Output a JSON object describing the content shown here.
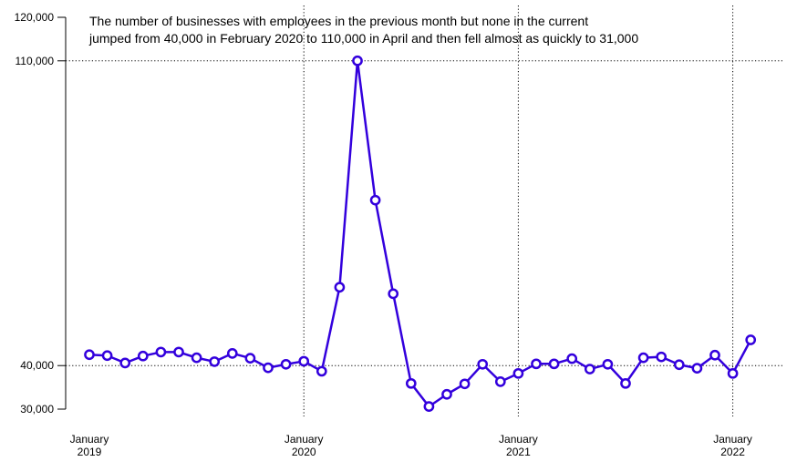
{
  "chart_data": {
    "type": "line",
    "annotation": [
      "The number of businesses with employees in the previous month but none in the current",
      "jumped from 40,000 in February 2020 to 110,000 in April and then fell almost as quickly to 31,000"
    ],
    "x_tick_labels": [
      {
        "month": "2019-01",
        "line1": "January",
        "line2": "2019"
      },
      {
        "month": "2020-01",
        "line1": "January",
        "line2": "2020"
      },
      {
        "month": "2021-01",
        "line1": "January",
        "line2": "2021"
      },
      {
        "month": "2022-01",
        "line1": "January",
        "line2": "2022"
      }
    ],
    "y_ticks": [
      {
        "value": 30000,
        "label": "30,000"
      },
      {
        "value": 40000,
        "label": "40,000"
      },
      {
        "value": 110000,
        "label": "110,000"
      },
      {
        "value": 120000,
        "label": "120,000"
      }
    ],
    "y_gridlines": [
      40000,
      110000
    ],
    "x_gridlines": [
      "2020-01",
      "2021-01",
      "2022-01"
    ],
    "ylim": [
      30000,
      120000
    ],
    "grid": true,
    "series": [
      {
        "color": "#3300dd",
        "points": [
          {
            "month": "2019-01",
            "value": 42500
          },
          {
            "month": "2019-02",
            "value": 42300
          },
          {
            "month": "2019-03",
            "value": 40600
          },
          {
            "month": "2019-04",
            "value": 42200
          },
          {
            "month": "2019-05",
            "value": 43100
          },
          {
            "month": "2019-06",
            "value": 43100
          },
          {
            "month": "2019-07",
            "value": 41800
          },
          {
            "month": "2019-08",
            "value": 40900
          },
          {
            "month": "2019-09",
            "value": 42800
          },
          {
            "month": "2019-10",
            "value": 41700
          },
          {
            "month": "2019-11",
            "value": 39500
          },
          {
            "month": "2019-12",
            "value": 40300
          },
          {
            "month": "2020-01",
            "value": 41000
          },
          {
            "month": "2020-02",
            "value": 38700
          },
          {
            "month": "2020-03",
            "value": 58000
          },
          {
            "month": "2020-04",
            "value": 110000
          },
          {
            "month": "2020-05",
            "value": 78000
          },
          {
            "month": "2020-06",
            "value": 56500
          },
          {
            "month": "2020-07",
            "value": 35900
          },
          {
            "month": "2020-08",
            "value": 30600
          },
          {
            "month": "2020-09",
            "value": 33400
          },
          {
            "month": "2020-10",
            "value": 35800
          },
          {
            "month": "2020-11",
            "value": 40300
          },
          {
            "month": "2020-12",
            "value": 36300
          },
          {
            "month": "2021-01",
            "value": 38200
          },
          {
            "month": "2021-02",
            "value": 40400
          },
          {
            "month": "2021-03",
            "value": 40400
          },
          {
            "month": "2021-04",
            "value": 41600
          },
          {
            "month": "2021-05",
            "value": 39200
          },
          {
            "month": "2021-06",
            "value": 40300
          },
          {
            "month": "2021-07",
            "value": 35900
          },
          {
            "month": "2021-08",
            "value": 41800
          },
          {
            "month": "2021-09",
            "value": 42000
          },
          {
            "month": "2021-10",
            "value": 40200
          },
          {
            "month": "2021-11",
            "value": 39400
          },
          {
            "month": "2021-12",
            "value": 42400
          },
          {
            "month": "2022-01",
            "value": 38200
          },
          {
            "month": "2022-02",
            "value": 45900
          }
        ]
      }
    ]
  }
}
